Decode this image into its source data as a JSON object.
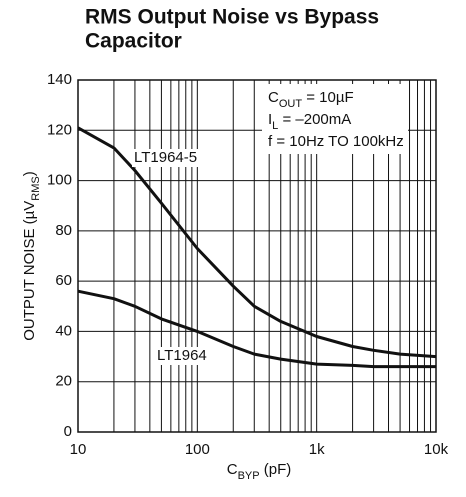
{
  "chart_data": {
    "type": "line",
    "title": [
      "RMS Output Noise vs Bypass",
      "Capacitor"
    ],
    "x_label": [
      {
        "text": "C"
      },
      {
        "text": "BYP",
        "sub": true
      },
      {
        "text": " (pF)"
      }
    ],
    "y_label": [
      {
        "text": "OUTPUT NOISE (µV"
      },
      {
        "text": "RMS",
        "sub": true
      },
      {
        "text": ")"
      }
    ],
    "annotations": [
      [
        {
          "text": "C"
        },
        {
          "text": "OUT",
          "sub": true
        },
        {
          "text": " = 10µF"
        }
      ],
      [
        {
          "text": "I"
        },
        {
          "text": "L",
          "sub": true
        },
        {
          "text": " = –200mA"
        }
      ],
      [
        {
          "text": "f = 10Hz TO 100kHz"
        }
      ]
    ],
    "x": [
      10,
      20,
      30,
      50,
      100,
      200,
      300,
      500,
      1000,
      2000,
      3000,
      5000,
      10000
    ],
    "series": [
      {
        "name": "LT1964-5",
        "color": "#111111",
        "values": [
          121,
          113,
          104,
          91,
          73,
          58,
          50,
          44,
          38,
          34,
          32.5,
          31,
          30
        ]
      },
      {
        "name": "LT1964",
        "color": "#111111",
        "values": [
          56,
          53,
          50,
          45,
          40,
          34,
          31,
          29,
          27,
          26.5,
          26,
          26,
          26
        ]
      }
    ],
    "xlog": true,
    "xlim": [
      10,
      10000
    ],
    "xticks": [
      10,
      100,
      {
        "value": 1000,
        "label": "1k"
      },
      {
        "value": 10000,
        "label": "10k"
      }
    ],
    "xminor_ticks": [
      20,
      30,
      40,
      50,
      60,
      70,
      80,
      90,
      200,
      300,
      400,
      500,
      600,
      700,
      800,
      900,
      2000,
      3000,
      4000,
      5000,
      6000,
      7000,
      8000,
      9000
    ],
    "ylim": [
      0,
      140
    ],
    "yticks": [
      0,
      20,
      40,
      60,
      80,
      100,
      120,
      140
    ],
    "grid": true
  }
}
